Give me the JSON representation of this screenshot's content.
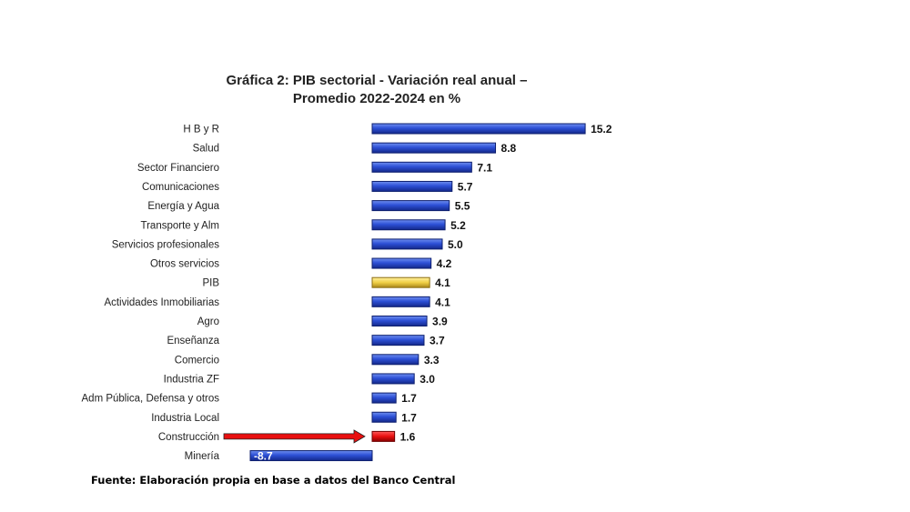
{
  "chart_data": {
    "type": "bar",
    "orientation": "horizontal",
    "title_line1": "Gráfica 2: PIB sectorial - Variación real anual –",
    "title_line2": "Promedio 2022-2024 en %",
    "source": "Fuente: Elaboración propia en base a datos del Banco Central",
    "categories": [
      "H B y R",
      "Salud",
      "Sector Financiero",
      "Comunicaciones",
      "Energía y Agua",
      "Transporte y Alm",
      "Servicios profesionales",
      "Otros servicios",
      "PIB",
      "Actividades Inmobiliarias",
      "Agro",
      "Enseñanza",
      "Comercio",
      "Industria ZF",
      "Adm Pública, Defensa y otros",
      "Industria Local",
      "Construcción",
      "Minería"
    ],
    "values": [
      15.2,
      8.8,
      7.1,
      5.7,
      5.5,
      5.2,
      5.0,
      4.2,
      4.1,
      4.1,
      3.9,
      3.7,
      3.3,
      3.0,
      1.7,
      1.7,
      1.6,
      -8.7
    ],
    "value_labels": [
      "15.2",
      "8.8",
      "7.1",
      "5.7",
      "5.5",
      "5.2",
      "5.0",
      "4.2",
      "4.1",
      "4.1",
      "3.9",
      "3.7",
      "3.3",
      "3.0",
      "1.7",
      "1.7",
      "1.6",
      "-8.7"
    ],
    "bar_colors": {
      "default": "#2a4fd0",
      "PIB": "#f2d75a",
      "Construcción": "#e81010"
    },
    "highlight_arrow_target": "Construcción",
    "arrow_color": "#e81010",
    "grid": false,
    "legend": "none"
  }
}
